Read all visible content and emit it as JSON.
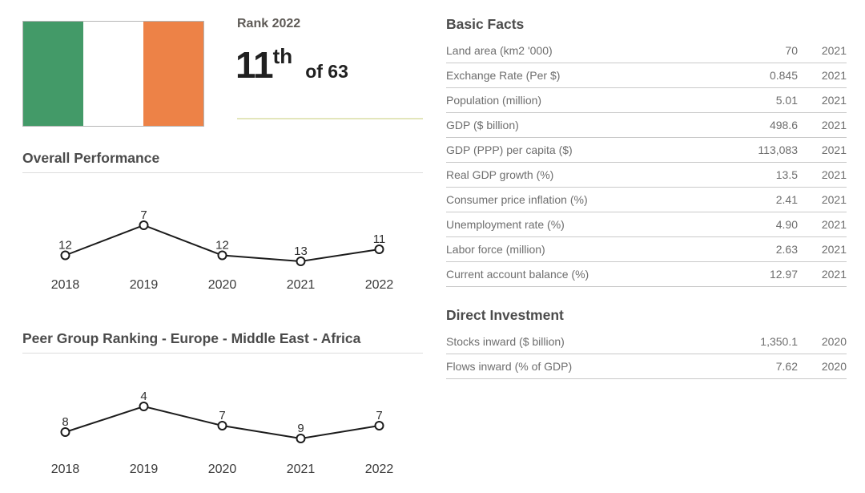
{
  "flag": {
    "country": "Ireland",
    "stripes": [
      "#439a68",
      "#ffffff",
      "#ed8247"
    ]
  },
  "rank": {
    "label": "Rank 2022",
    "number": "11",
    "suffix": "th",
    "of_text": "of 63"
  },
  "sections": {
    "basic_facts": {
      "title": "Basic Facts",
      "rows": [
        {
          "label": "Land area (km2 '000)",
          "value": "70",
          "year": "2021"
        },
        {
          "label": "Exchange Rate (Per $)",
          "value": "0.845",
          "year": "2021"
        },
        {
          "label": "Population (million)",
          "value": "5.01",
          "year": "2021"
        },
        {
          "label": "GDP ($ billion)",
          "value": "498.6",
          "year": "2021"
        },
        {
          "label": "GDP (PPP) per capita ($)",
          "value": "113,083",
          "year": "2021"
        },
        {
          "label": "Real GDP growth (%)",
          "value": "13.5",
          "year": "2021"
        },
        {
          "label": "Consumer price inflation (%)",
          "value": "2.41",
          "year": "2021"
        },
        {
          "label": "Unemployment rate (%)",
          "value": "4.90",
          "year": "2021"
        },
        {
          "label": "Labor force (million)",
          "value": "2.63",
          "year": "2021"
        },
        {
          "label": "Current account balance (%)",
          "value": "12.97",
          "year": "2021"
        }
      ]
    },
    "direct_investment": {
      "title": "Direct Investment",
      "rows": [
        {
          "label": "Stocks inward ($ billion)",
          "value": "1,350.1",
          "year": "2020"
        },
        {
          "label": "Flows inward (% of GDP)",
          "value": "7.62",
          "year": "2020"
        }
      ]
    }
  },
  "colors": {
    "flag_green": "#439a68",
    "flag_orange": "#ed8247",
    "chart_line": "#1c1c1c",
    "rank_divider": "#e3e6bb",
    "section_divider": "#dcdcdc",
    "table_border": "#c9c9c9",
    "title_text": "#4b4b4b",
    "table_text": "#6e6e6e"
  },
  "chart_data": [
    {
      "type": "line",
      "title": "Overall Performance",
      "x": [
        "2018",
        "2019",
        "2020",
        "2021",
        "2022"
      ],
      "values": [
        12,
        7,
        12,
        13,
        11
      ],
      "xlabel": "",
      "ylabel": "",
      "y_inverted": true,
      "data_labels": true,
      "marker": "open-circle",
      "line_color": "#1c1c1c",
      "grid": false,
      "legend": false
    },
    {
      "type": "line",
      "title": "Peer Group Ranking - Europe - Middle East - Africa",
      "x": [
        "2018",
        "2019",
        "2020",
        "2021",
        "2022"
      ],
      "values": [
        8,
        4,
        7,
        9,
        7
      ],
      "xlabel": "",
      "ylabel": "",
      "y_inverted": true,
      "data_labels": true,
      "marker": "open-circle",
      "line_color": "#1c1c1c",
      "grid": false,
      "legend": false
    }
  ]
}
